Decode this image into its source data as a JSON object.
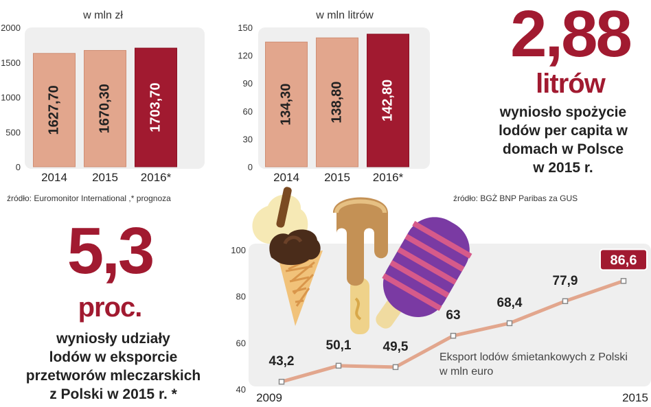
{
  "chart_data": [
    {
      "type": "bar",
      "title": "w mln zł",
      "categories": [
        "2014",
        "2015",
        "2016*"
      ],
      "values": [
        1627.7,
        1670.3,
        1703.7
      ],
      "value_labels": [
        "1627,70",
        "1670,30",
        "1703,70"
      ],
      "ylim": [
        0,
        2000
      ],
      "yticks": [
        "0",
        "500",
        "1000",
        "1500",
        "2000"
      ],
      "source": "źródło: Euromonitor International ,* prognoza"
    },
    {
      "type": "bar",
      "title": "w mln litrów",
      "categories": [
        "2014",
        "2015",
        "2016*"
      ],
      "values": [
        134.3,
        138.8,
        142.8
      ],
      "value_labels": [
        "134,30",
        "138,80",
        "142,80"
      ],
      "ylim": [
        0,
        150
      ],
      "yticks": [
        "0",
        "30",
        "60",
        "90",
        "120",
        "150"
      ],
      "source": "źródło: BGŻ BNP Paribas za GUS"
    },
    {
      "type": "line",
      "title": "Eksport lodów śmietankowych z Polski w mln euro",
      "title_lines": [
        "Eksport lodów śmietankowych z Polski",
        "w mln euro"
      ],
      "x": [
        2009,
        2010,
        2011,
        2012,
        2013,
        2014,
        2015
      ],
      "values": [
        43.2,
        50.1,
        49.5,
        63,
        68.4,
        77.9,
        86.6
      ],
      "value_labels": [
        "43,2",
        "50,1",
        "49,5",
        "63",
        "68,4",
        "77,9",
        "86,6"
      ],
      "xtick_labels": [
        "2009",
        "2015"
      ],
      "ylim": [
        40,
        100
      ],
      "yticks": [
        "40",
        "60",
        "80",
        "100"
      ]
    }
  ],
  "facts": {
    "consumption": {
      "value": "2,88",
      "unit": "litrów",
      "caption": [
        "wyniosło spożycie",
        "lodów per capita w",
        "domach w Polsce",
        "w 2015 r."
      ]
    },
    "export_share": {
      "value": "5,3",
      "unit": "proc.",
      "caption": [
        "wyniosły udziały",
        "lodów w eksporcie",
        "przetworów mleczarskich",
        "z Polski w 2015 r. *"
      ]
    }
  },
  "colors": {
    "bar_light": "#e2a68d",
    "bar_dark": "#a11a30",
    "accent": "#a11a30",
    "panel": "#efefef",
    "line": "#e2a68d"
  },
  "icons": [
    "ice-cream-cone-icon",
    "caramel-popsicle-icon",
    "striped-popsicle-icon"
  ]
}
